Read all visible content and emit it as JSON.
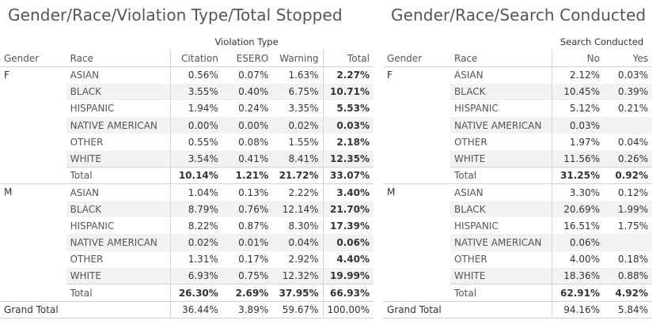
{
  "left": {
    "title": "Gender/Race/Violation Type/Total Stopped",
    "group_header": "Violation Type",
    "columns": [
      "Gender",
      "Race",
      "Citation",
      "ESERO",
      "Warning",
      "Total"
    ],
    "groups": [
      {
        "gender": "F",
        "rows": [
          {
            "race": "ASIAN",
            "values": [
              "0.56%",
              "0.07%",
              "1.63%",
              "2.27%"
            ]
          },
          {
            "race": "BLACK",
            "values": [
              "3.55%",
              "0.40%",
              "6.75%",
              "10.71%"
            ]
          },
          {
            "race": "HISPANIC",
            "values": [
              "1.94%",
              "0.24%",
              "3.35%",
              "5.53%"
            ]
          },
          {
            "race": "NATIVE AMERICAN",
            "values": [
              "0.00%",
              "0.00%",
              "0.02%",
              "0.03%"
            ]
          },
          {
            "race": "OTHER",
            "values": [
              "0.55%",
              "0.08%",
              "1.55%",
              "2.18%"
            ]
          },
          {
            "race": "WHITE",
            "values": [
              "3.54%",
              "0.41%",
              "8.41%",
              "12.35%"
            ]
          }
        ],
        "total": {
          "label": "Total",
          "values": [
            "10.14%",
            "1.21%",
            "21.72%",
            "33.07%"
          ]
        }
      },
      {
        "gender": "M",
        "rows": [
          {
            "race": "ASIAN",
            "values": [
              "1.04%",
              "0.13%",
              "2.22%",
              "3.40%"
            ]
          },
          {
            "race": "BLACK",
            "values": [
              "8.79%",
              "0.76%",
              "12.14%",
              "21.70%"
            ]
          },
          {
            "race": "HISPANIC",
            "values": [
              "8.22%",
              "0.87%",
              "8.30%",
              "17.39%"
            ]
          },
          {
            "race": "NATIVE AMERICAN",
            "values": [
              "0.02%",
              "0.01%",
              "0.04%",
              "0.06%"
            ]
          },
          {
            "race": "OTHER",
            "values": [
              "1.31%",
              "0.17%",
              "2.92%",
              "4.40%"
            ]
          },
          {
            "race": "WHITE",
            "values": [
              "6.93%",
              "0.75%",
              "12.32%",
              "19.99%"
            ]
          }
        ],
        "total": {
          "label": "Total",
          "values": [
            "26.30%",
            "2.69%",
            "37.95%",
            "66.93%"
          ]
        }
      }
    ],
    "grand_total": {
      "label": "Grand Total",
      "values": [
        "36.44%",
        "3.89%",
        "59.67%",
        "100.00%"
      ]
    }
  },
  "right": {
    "title": "Gender/Race/Search Conducted",
    "group_header": "Search Conducted",
    "columns": [
      "Gender",
      "Race",
      "No",
      "Yes"
    ],
    "groups": [
      {
        "gender": "F",
        "rows": [
          {
            "race": "ASIAN",
            "values": [
              "2.12%",
              "0.03%"
            ]
          },
          {
            "race": "BLACK",
            "values": [
              "10.45%",
              "0.39%"
            ]
          },
          {
            "race": "HISPANIC",
            "values": [
              "5.12%",
              "0.21%"
            ]
          },
          {
            "race": "NATIVE AMERICAN",
            "values": [
              "0.03%",
              ""
            ]
          },
          {
            "race": "OTHER",
            "values": [
              "1.97%",
              "0.04%"
            ]
          },
          {
            "race": "WHITE",
            "values": [
              "11.56%",
              "0.26%"
            ]
          }
        ],
        "total": {
          "label": "Total",
          "values": [
            "31.25%",
            "0.92%"
          ]
        }
      },
      {
        "gender": "M",
        "rows": [
          {
            "race": "ASIAN",
            "values": [
              "3.30%",
              "0.12%"
            ]
          },
          {
            "race": "BLACK",
            "values": [
              "20.69%",
              "1.99%"
            ]
          },
          {
            "race": "HISPANIC",
            "values": [
              "16.51%",
              "1.75%"
            ]
          },
          {
            "race": "NATIVE AMERICAN",
            "values": [
              "0.06%",
              ""
            ]
          },
          {
            "race": "OTHER",
            "values": [
              "4.00%",
              "0.18%"
            ]
          },
          {
            "race": "WHITE",
            "values": [
              "18.36%",
              "0.88%"
            ]
          }
        ],
        "total": {
          "label": "Total",
          "values": [
            "62.91%",
            "4.92%"
          ]
        }
      }
    ],
    "grand_total": {
      "label": "Grand Total",
      "values": [
        "94.16%",
        "5.84%"
      ]
    }
  }
}
